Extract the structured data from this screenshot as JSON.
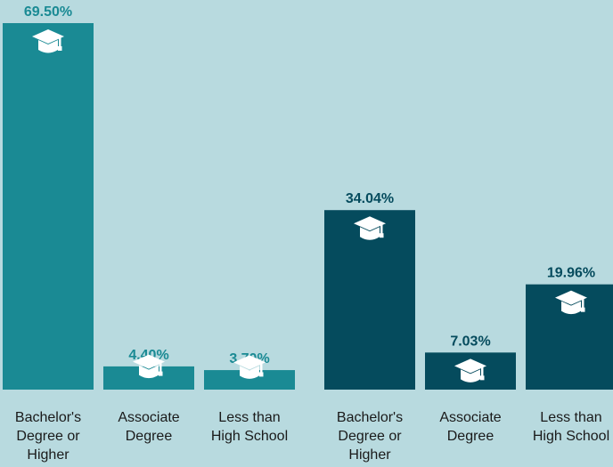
{
  "chart_data": {
    "type": "bar",
    "ylim": [
      0,
      70
    ],
    "grid": false,
    "groups": [
      {
        "color": "#1a8a94",
        "label_color": "#1a8a94",
        "bars": [
          {
            "category": "Bachelor's Degree or Higher",
            "value": 69.5,
            "label": "69.50%",
            "icon": "graduation-cap-icon"
          },
          {
            "category": "Associate Degree",
            "value": 4.4,
            "label": "4.40%",
            "icon": "graduation-cap-icon"
          },
          {
            "category": "Less than High School",
            "value": 3.7,
            "label": "3.70%",
            "icon": "graduation-cap-icon"
          }
        ]
      },
      {
        "color": "#054b5d",
        "label_color": "#054b5d",
        "bars": [
          {
            "category": "Bachelor's Degree or Higher",
            "value": 34.04,
            "label": "34.04%",
            "icon": "graduation-cap-icon"
          },
          {
            "category": "Associate Degree",
            "value": 7.03,
            "label": "7.03%",
            "icon": "graduation-cap-icon"
          },
          {
            "category": "Less than High School",
            "value": 19.96,
            "label": "19.96%",
            "icon": "graduation-cap-icon"
          }
        ]
      }
    ],
    "category_lines": {
      "Bachelor's Degree or Higher": [
        "Bachelor's",
        "Degree or",
        "Higher"
      ],
      "Associate Degree": [
        "Associate",
        "Degree"
      ],
      "Less than High School": [
        "Less than",
        "High School"
      ]
    }
  }
}
